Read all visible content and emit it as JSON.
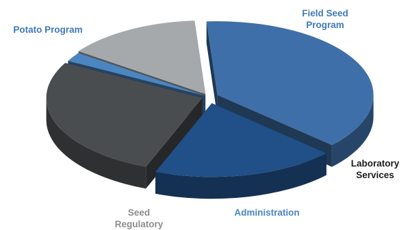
{
  "chart_data": {
    "type": "pie",
    "style": "3d-exploded",
    "title": "",
    "legend": "none",
    "slices": [
      {
        "label_lines": [
          "Potato Program"
        ],
        "value": 38,
        "color": "#3e6fa8",
        "label_color": "#3e79b8"
      },
      {
        "label_lines": [
          "Field Seed",
          "Program"
        ],
        "value": 19,
        "color": "#214f87",
        "label_color": "#3e79b8"
      },
      {
        "label_lines": [
          "Laboratory",
          "Services"
        ],
        "value": 27,
        "color": "#4a4d50",
        "label_color": "#1a1a1a"
      },
      {
        "label_lines": [
          "Administration"
        ],
        "value": 2,
        "color": "#4b86c1",
        "label_color": "#4a84c0"
      },
      {
        "label_lines": [
          "Seed",
          "Regulatory"
        ],
        "value": 14,
        "color": "#a6a9ab",
        "label_color": "#8c8c8c"
      }
    ]
  }
}
